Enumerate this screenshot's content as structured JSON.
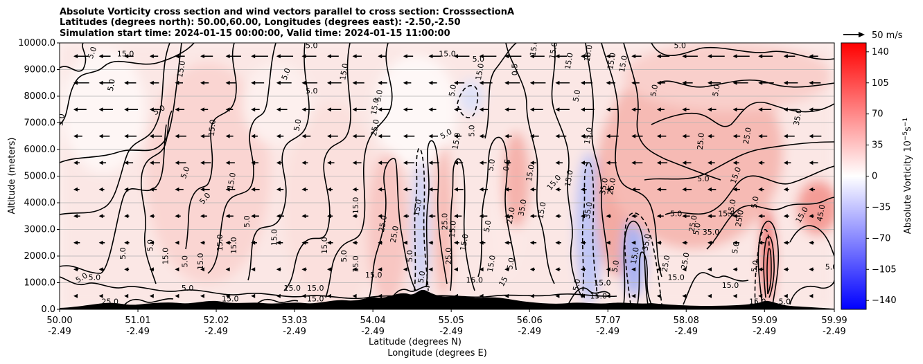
{
  "chart_data": {
    "type": "heatmap",
    "title_lines": [
      "Absolute Vorticity cross section and wind vectors parallel to cross section: CrosssectionA",
      "Latitudes (degrees north): 50.00,60.00, Longitudes (degrees east): -2.50,-2.50",
      "Simulation start time: 2024-01-15 00:00:00, Valid time: 2024-01-15 11:00:00"
    ],
    "xlabel_lines": [
      "Latitude (degrees N)",
      "Longitude (degrees E)"
    ],
    "ylabel": "Altitude (meters)",
    "xlim": [
      50.0,
      59.99
    ],
    "ylim": [
      0,
      10000
    ],
    "x_ticks": [
      {
        "lat": 50.0,
        "lat_label": "50.00",
        "lon_label": "-2.49"
      },
      {
        "lat": 51.01,
        "lat_label": "51.01",
        "lon_label": "-2.49"
      },
      {
        "lat": 52.02,
        "lat_label": "52.02",
        "lon_label": "-2.49"
      },
      {
        "lat": 53.03,
        "lat_label": "53.03",
        "lon_label": "-2.49"
      },
      {
        "lat": 54.04,
        "lat_label": "54.04",
        "lon_label": "-2.49"
      },
      {
        "lat": 55.05,
        "lat_label": "55.05",
        "lon_label": "-2.49"
      },
      {
        "lat": 56.06,
        "lat_label": "56.06",
        "lon_label": "-2.49"
      },
      {
        "lat": 57.07,
        "lat_label": "57.07",
        "lon_label": "-2.49"
      },
      {
        "lat": 58.08,
        "lat_label": "58.08",
        "lon_label": "-2.49"
      },
      {
        "lat": 59.09,
        "lat_label": "59.09",
        "lon_label": "-2.49"
      },
      {
        "lat": 59.99,
        "lat_label": "59.99",
        "lon_label": "-2.49"
      }
    ],
    "y_ticks": [
      {
        "value": 0,
        "label": "0.0"
      },
      {
        "value": 1000,
        "label": "1000.0"
      },
      {
        "value": 2000,
        "label": "2000.0"
      },
      {
        "value": 3000,
        "label": "3000.0"
      },
      {
        "value": 4000,
        "label": "4000.0"
      },
      {
        "value": 5000,
        "label": "5000.0"
      },
      {
        "value": 6000,
        "label": "6000.0"
      },
      {
        "value": 7000,
        "label": "7000.0"
      },
      {
        "value": 8000,
        "label": "8000.0"
      },
      {
        "value": 9000,
        "label": "9000.0"
      },
      {
        "value": 10000,
        "label": "10000.0"
      }
    ],
    "grid": "horizontal",
    "colorbar": {
      "label": "Absolute Vorticity 10$^{-5}$s$^{-1}$",
      "label_main": "Absolute Vorticity 10",
      "label_exp1": "−5",
      "label_mid": "s",
      "label_exp2": "−1",
      "range": [
        -150,
        150
      ],
      "colormap": "bwr",
      "color_min": "#0000ff",
      "color_mid": "#ffffff",
      "color_max": "#ff0000",
      "ticks": [
        {
          "value": 140,
          "label": "140"
        },
        {
          "value": 105,
          "label": "105"
        },
        {
          "value": 70,
          "label": "70"
        },
        {
          "value": 35,
          "label": "35"
        },
        {
          "value": 0,
          "label": "0"
        },
        {
          "value": -35,
          "label": "−35"
        },
        {
          "value": -70,
          "label": "−70"
        },
        {
          "value": -105,
          "label": "−105"
        },
        {
          "value": -140,
          "label": "−140"
        }
      ]
    },
    "quiver_key": {
      "label": "50 m/s",
      "speed": 50
    },
    "wind_vectors": {
      "direction": "westward",
      "description_units": "m/s"
    },
    "contour_labels": [
      {
        "lat": 50.45,
        "alt": 9600,
        "text": "5.0",
        "angle": -70
      },
      {
        "lat": 50.85,
        "alt": 9500,
        "text": "15.0",
        "angle": 0
      },
      {
        "lat": 50.7,
        "alt": 8400,
        "text": "5.0",
        "angle": -80
      },
      {
        "lat": 50.05,
        "alt": 7100,
        "text": "5.0",
        "angle": -80
      },
      {
        "lat": 51.3,
        "alt": 7400,
        "text": "5.0",
        "angle": -30
      },
      {
        "lat": 51.6,
        "alt": 9000,
        "text": "15.0",
        "angle": -80
      },
      {
        "lat": 51.65,
        "alt": 5100,
        "text": "5.0",
        "angle": -70
      },
      {
        "lat": 51.9,
        "alt": 4100,
        "text": "5.0",
        "angle": -50
      },
      {
        "lat": 52.0,
        "alt": 6800,
        "text": "15.0",
        "angle": -85
      },
      {
        "lat": 52.45,
        "alt": 3300,
        "text": "5.0",
        "angle": -90
      },
      {
        "lat": 52.25,
        "alt": 4800,
        "text": "15.0",
        "angle": -80
      },
      {
        "lat": 52.28,
        "alt": 2400,
        "text": "15.0",
        "angle": -90
      },
      {
        "lat": 52.95,
        "alt": 8800,
        "text": "5.0",
        "angle": -70
      },
      {
        "lat": 53.25,
        "alt": 8100,
        "text": "5.0",
        "angle": 0
      },
      {
        "lat": 53.1,
        "alt": 6900,
        "text": "5.0",
        "angle": -80
      },
      {
        "lat": 53.25,
        "alt": 9800,
        "text": "5.0",
        "angle": 0
      },
      {
        "lat": 52.8,
        "alt": 2700,
        "text": "15.0",
        "angle": -90
      },
      {
        "lat": 52.1,
        "alt": 2500,
        "text": "15.0",
        "angle": -90
      },
      {
        "lat": 51.2,
        "alt": 2400,
        "text": "5.0",
        "angle": -90
      },
      {
        "lat": 50.85,
        "alt": 2100,
        "text": "5.0",
        "angle": -90
      },
      {
        "lat": 51.4,
        "alt": 2000,
        "text": "15.0",
        "angle": -90
      },
      {
        "lat": 51.65,
        "alt": 1800,
        "text": "5.0",
        "angle": -90
      },
      {
        "lat": 51.85,
        "alt": 1800,
        "text": "15.0",
        "angle": -90
      },
      {
        "lat": 50.3,
        "alt": 1100,
        "text": "5.0",
        "angle": -30
      },
      {
        "lat": 50.45,
        "alt": 1100,
        "text": "5.0",
        "angle": 0
      },
      {
        "lat": 51.65,
        "alt": 700,
        "text": "5.0",
        "angle": 0
      },
      {
        "lat": 53.0,
        "alt": 700,
        "text": "15.0",
        "angle": 0
      },
      {
        "lat": 53.3,
        "alt": 700,
        "text": "15.0",
        "angle": 0
      },
      {
        "lat": 53.3,
        "alt": 300,
        "text": "15.0",
        "angle": 0
      },
      {
        "lat": 52.2,
        "alt": 300,
        "text": "15.0",
        "angle": 0
      },
      {
        "lat": 53.7,
        "alt": 8900,
        "text": "15.0",
        "angle": -80
      },
      {
        "lat": 54.15,
        "alt": 8000,
        "text": "5.0",
        "angle": -80
      },
      {
        "lat": 54.1,
        "alt": 7600,
        "text": "15.0",
        "angle": -80
      },
      {
        "lat": 54.1,
        "alt": 6800,
        "text": "25.0",
        "angle": -80
      },
      {
        "lat": 53.85,
        "alt": 3900,
        "text": "15.0",
        "angle": -90
      },
      {
        "lat": 53.45,
        "alt": 2400,
        "text": "15.0",
        "angle": -90
      },
      {
        "lat": 53.7,
        "alt": 2000,
        "text": "5.0",
        "angle": -90
      },
      {
        "lat": 53.85,
        "alt": 1700,
        "text": "15.0",
        "angle": -90
      },
      {
        "lat": 54.2,
        "alt": 3200,
        "text": "25.0",
        "angle": -80
      },
      {
        "lat": 54.35,
        "alt": 2800,
        "text": "25.0",
        "angle": -80
      },
      {
        "lat": 54.55,
        "alt": 2000,
        "text": "5.0",
        "angle": -90
      },
      {
        "lat": 54.7,
        "alt": 1200,
        "text": "5.0",
        "angle": -80
      },
      {
        "lat": 55.0,
        "alt": 9500,
        "text": "15.0",
        "angle": 0
      },
      {
        "lat": 55.4,
        "alt": 9300,
        "text": "5.0",
        "angle": 0
      },
      {
        "lat": 55.45,
        "alt": 8900,
        "text": "15.0",
        "angle": -80
      },
      {
        "lat": 55.1,
        "alt": 8200,
        "text": "5.0",
        "angle": -80
      },
      {
        "lat": 55.35,
        "alt": 6700,
        "text": "5.0",
        "angle": -90
      },
      {
        "lat": 55.0,
        "alt": 6500,
        "text": "5.0",
        "angle": -30
      },
      {
        "lat": 55.15,
        "alt": 6300,
        "text": "15.0",
        "angle": -80
      },
      {
        "lat": 55.6,
        "alt": 5400,
        "text": "5.0",
        "angle": -80
      },
      {
        "lat": 54.65,
        "alt": 3800,
        "text": "15.0",
        "angle": -80
      },
      {
        "lat": 55.0,
        "alt": 3300,
        "text": "25.0",
        "angle": -90
      },
      {
        "lat": 55.1,
        "alt": 3000,
        "text": "15.0",
        "angle": -85
      },
      {
        "lat": 55.55,
        "alt": 3100,
        "text": "5.0",
        "angle": -80
      },
      {
        "lat": 55.25,
        "alt": 2500,
        "text": "15.0",
        "angle": -80
      },
      {
        "lat": 55.05,
        "alt": 2000,
        "text": "25.0",
        "angle": -90
      },
      {
        "lat": 55.6,
        "alt": 1700,
        "text": "15.0",
        "angle": -80
      },
      {
        "lat": 55.85,
        "alt": 1700,
        "text": "5.0",
        "angle": -80
      },
      {
        "lat": 55.9,
        "alt": 9000,
        "text": "0.5",
        "angle": -90
      },
      {
        "lat": 56.15,
        "alt": 9800,
        "text": "15.0",
        "angle": -80
      },
      {
        "lat": 56.4,
        "alt": 9700,
        "text": "15.0",
        "angle": -80
      },
      {
        "lat": 56.6,
        "alt": 9300,
        "text": "15.0",
        "angle": -80
      },
      {
        "lat": 56.85,
        "alt": 9600,
        "text": "15.0",
        "angle": -80
      },
      {
        "lat": 56.7,
        "alt": 8000,
        "text": "5.0",
        "angle": -80
      },
      {
        "lat": 56.85,
        "alt": 6500,
        "text": "15.0",
        "angle": -80
      },
      {
        "lat": 55.8,
        "alt": 5400,
        "text": "0.5",
        "angle": -80
      },
      {
        "lat": 56.1,
        "alt": 5100,
        "text": "15.0",
        "angle": -80
      },
      {
        "lat": 56.4,
        "alt": 4700,
        "text": "15.0",
        "angle": -50
      },
      {
        "lat": 56.6,
        "alt": 4900,
        "text": "15.0",
        "angle": -80
      },
      {
        "lat": 55.85,
        "alt": 3500,
        "text": "25.0",
        "angle": -80
      },
      {
        "lat": 56.0,
        "alt": 3800,
        "text": "35.0",
        "angle": -80
      },
      {
        "lat": 56.25,
        "alt": 3700,
        "text": "15.0",
        "angle": -80
      },
      {
        "lat": 56.85,
        "alt": 3700,
        "text": "35.0",
        "angle": -80
      },
      {
        "lat": 57.05,
        "alt": 4600,
        "text": "35.0",
        "angle": -80
      },
      {
        "lat": 57.15,
        "alt": 4600,
        "text": "25.0",
        "angle": -80
      },
      {
        "lat": 57.15,
        "alt": 9300,
        "text": "15.0",
        "angle": -80
      },
      {
        "lat": 57.3,
        "alt": 9200,
        "text": "15.0",
        "angle": -80
      },
      {
        "lat": 57.7,
        "alt": 8200,
        "text": "5.0",
        "angle": -80
      },
      {
        "lat": 58.0,
        "alt": 9800,
        "text": "5.0",
        "angle": 0
      },
      {
        "lat": 58.5,
        "alt": 8200,
        "text": "5.0",
        "angle": -80
      },
      {
        "lat": 58.9,
        "alt": 6500,
        "text": "25.0",
        "angle": -80
      },
      {
        "lat": 58.3,
        "alt": 6300,
        "text": "25.0",
        "angle": -85
      },
      {
        "lat": 58.3,
        "alt": 4800,
        "text": "5.0",
        "angle": 0
      },
      {
        "lat": 58.75,
        "alt": 5000,
        "text": "15.0",
        "angle": -70
      },
      {
        "lat": 59.0,
        "alt": 4000,
        "text": "5.0",
        "angle": -80
      },
      {
        "lat": 58.7,
        "alt": 3800,
        "text": "15.0",
        "angle": -80
      },
      {
        "lat": 59.55,
        "alt": 7200,
        "text": "35.0",
        "angle": -80
      },
      {
        "lat": 57.95,
        "alt": 3500,
        "text": "5.0",
        "angle": 0
      },
      {
        "lat": 58.2,
        "alt": 3200,
        "text": "25.0",
        "angle": -80
      },
      {
        "lat": 58.25,
        "alt": 3000,
        "text": "5.0",
        "angle": -80
      },
      {
        "lat": 58.4,
        "alt": 2800,
        "text": "35.0",
        "angle": 0
      },
      {
        "lat": 58.6,
        "alt": 3500,
        "text": "15.0",
        "angle": 0
      },
      {
        "lat": 58.8,
        "alt": 3400,
        "text": "25.0",
        "angle": -80
      },
      {
        "lat": 59.6,
        "alt": 3500,
        "text": "15.0",
        "angle": -60
      },
      {
        "lat": 59.85,
        "alt": 3600,
        "text": "45.0",
        "angle": -80
      },
      {
        "lat": 57.6,
        "alt": 2500,
        "text": "35.0",
        "angle": -80
      },
      {
        "lat": 57.45,
        "alt": 2000,
        "text": "15.0",
        "angle": -80
      },
      {
        "lat": 57.2,
        "alt": 1600,
        "text": "5.0",
        "angle": -80
      },
      {
        "lat": 57.85,
        "alt": 1700,
        "text": "25.0",
        "angle": -80
      },
      {
        "lat": 58.1,
        "alt": 1800,
        "text": "25.0",
        "angle": -80
      },
      {
        "lat": 58.75,
        "alt": 2300,
        "text": "5.0",
        "angle": -80
      },
      {
        "lat": 59.95,
        "alt": 1500,
        "text": "5.0",
        "angle": 0
      },
      {
        "lat": 58.65,
        "alt": 800,
        "text": "15.0",
        "angle": 0
      },
      {
        "lat": 57.95,
        "alt": 1100,
        "text": "15.0",
        "angle": 0
      },
      {
        "lat": 59.0,
        "alt": 1600,
        "text": "5.0",
        "angle": -80
      },
      {
        "lat": 59.0,
        "alt": 200,
        "text": "15.0",
        "angle": 0
      },
      {
        "lat": 59.35,
        "alt": 200,
        "text": "5.0",
        "angle": 0
      },
      {
        "lat": 56.7,
        "alt": 900,
        "text": "5.0",
        "angle": -80
      },
      {
        "lat": 57.0,
        "alt": 900,
        "text": "15.0",
        "angle": 0
      },
      {
        "lat": 56.95,
        "alt": 400,
        "text": "15.0",
        "angle": 0
      },
      {
        "lat": 50.65,
        "alt": 200,
        "text": "25.0",
        "angle": 0
      },
      {
        "lat": 54.05,
        "alt": 1200,
        "text": "15.0",
        "angle": 0
      },
      {
        "lat": 55.35,
        "alt": 1000,
        "text": "15.0",
        "angle": 0
      },
      {
        "lat": 55.75,
        "alt": 1000,
        "text": "15",
        "angle": -60
      }
    ]
  }
}
